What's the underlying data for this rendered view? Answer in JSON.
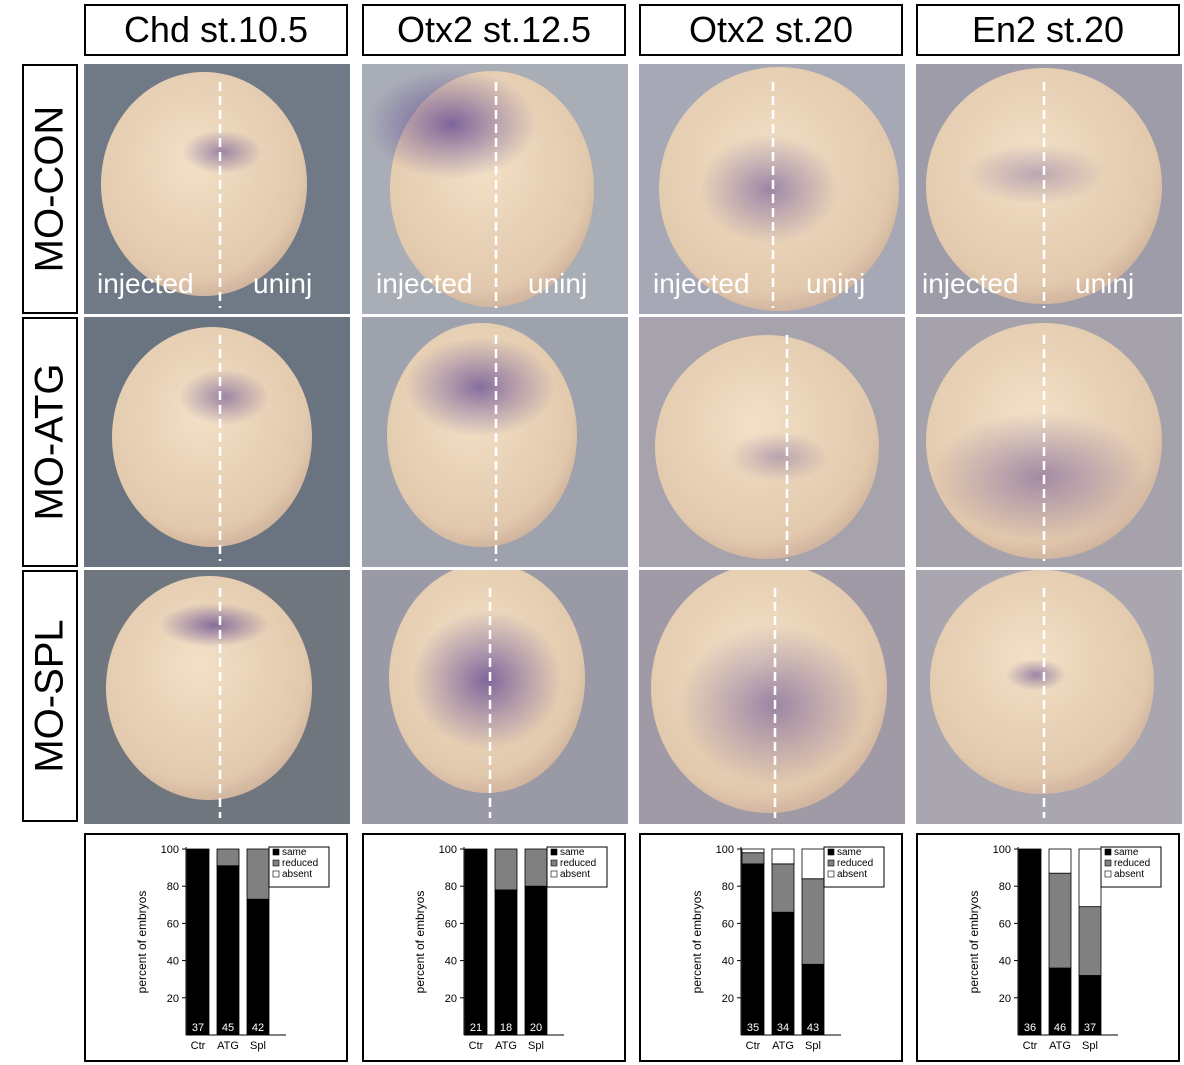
{
  "columns": [
    {
      "title": "Chd st.10.5"
    },
    {
      "title": "Otx2 st.12.5"
    },
    {
      "title": "Otx2 st.20"
    },
    {
      "title": "En2 st.20"
    }
  ],
  "rows": [
    {
      "title": "MO-CON"
    },
    {
      "title": "MO-ATG"
    },
    {
      "title": "MO-SPL"
    }
  ],
  "labels": {
    "injected": "injected",
    "uninjected": "uninj"
  },
  "colors": {
    "stain": "#5a3f8f",
    "embryo": "#e8d3ba",
    "background": "#7d7a8c",
    "same": "#000000",
    "reduced": "#808080",
    "absent": "#ffffff"
  },
  "chart_data": [
    {
      "type": "bar",
      "ylabel": "percent of embryos",
      "yticks": [
        20,
        40,
        60,
        80,
        100
      ],
      "ylim": [
        0,
        100
      ],
      "categories": [
        "Ctr",
        "ATG",
        "Spl"
      ],
      "counts": [
        "37",
        "45",
        "42"
      ],
      "series": [
        {
          "name": "same",
          "values": [
            100,
            91,
            73
          ]
        },
        {
          "name": "reduced",
          "values": [
            0,
            9,
            27
          ]
        },
        {
          "name": "absent",
          "values": [
            0,
            0,
            0
          ]
        }
      ],
      "legend_position": "top-right"
    },
    {
      "type": "bar",
      "ylabel": "percent of embryos",
      "yticks": [
        20,
        40,
        60,
        80,
        100
      ],
      "ylim": [
        0,
        100
      ],
      "categories": [
        "Ctr",
        "ATG",
        "Spl"
      ],
      "counts": [
        "21",
        "18",
        "20"
      ],
      "series": [
        {
          "name": "same",
          "values": [
            100,
            78,
            80
          ]
        },
        {
          "name": "reduced",
          "values": [
            0,
            22,
            20
          ]
        },
        {
          "name": "absent",
          "values": [
            0,
            0,
            0
          ]
        }
      ],
      "legend_position": "top-right"
    },
    {
      "type": "bar",
      "ylabel": "percent of embryos",
      "yticks": [
        20,
        40,
        60,
        80,
        100
      ],
      "ylim": [
        0,
        100
      ],
      "categories": [
        "Ctr",
        "ATG",
        "Spl"
      ],
      "counts": [
        "35",
        "34",
        "43"
      ],
      "series": [
        {
          "name": "same",
          "values": [
            92,
            66,
            38
          ]
        },
        {
          "name": "reduced",
          "values": [
            6,
            26,
            46
          ]
        },
        {
          "name": "absent",
          "values": [
            2,
            8,
            16
          ]
        }
      ],
      "legend_position": "top-right"
    },
    {
      "type": "bar",
      "ylabel": "percent of embryos",
      "yticks": [
        20,
        40,
        60,
        80,
        100
      ],
      "ylim": [
        0,
        100
      ],
      "categories": [
        "Ctr",
        "ATG",
        "Spl"
      ],
      "counts": [
        "36",
        "46",
        "37"
      ],
      "series": [
        {
          "name": "same",
          "values": [
            100,
            36,
            32
          ]
        },
        {
          "name": "reduced",
          "values": [
            0,
            51,
            37
          ]
        },
        {
          "name": "absent",
          "values": [
            0,
            13,
            31
          ]
        }
      ],
      "legend_position": "top-right"
    }
  ]
}
